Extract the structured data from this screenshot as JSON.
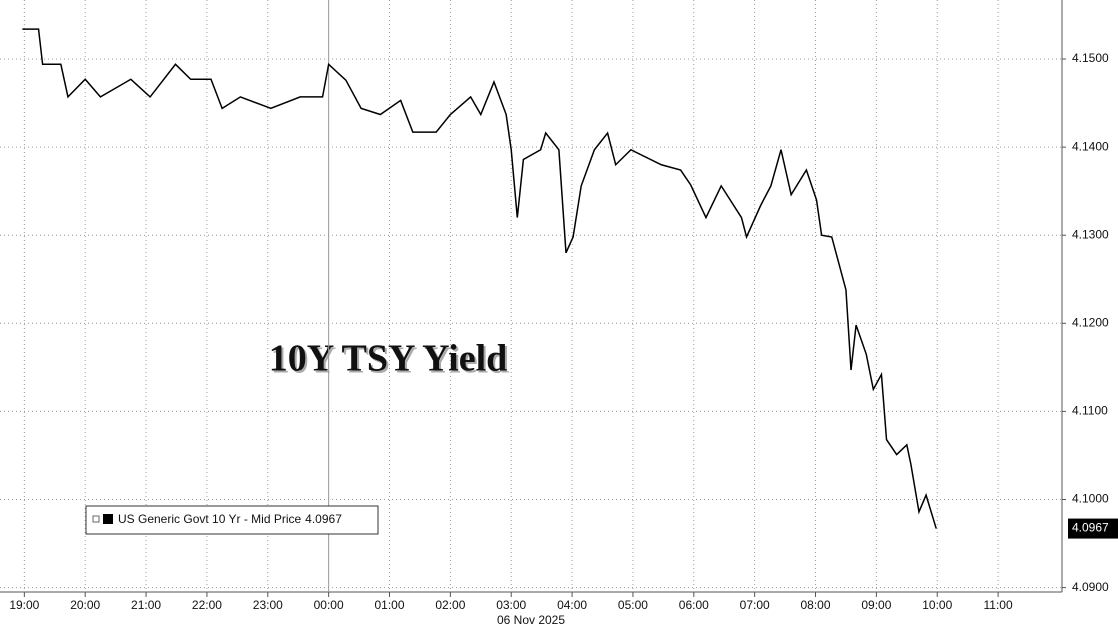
{
  "chart_data": {
    "type": "line",
    "annotation": "10Y TSY Yield",
    "date_label": "06 Nov 2025",
    "x": [
      "18:58",
      "19:14",
      "19:18",
      "19:36",
      "19:43",
      "20:00",
      "20:15",
      "20:45",
      "21:04",
      "21:29",
      "21:44",
      "22:04",
      "22:15",
      "22:33",
      "23:03",
      "23:32",
      "23:54",
      "00:00",
      "00:17",
      "00:32",
      "00:51",
      "01:11",
      "01:23",
      "01:46",
      "02:00",
      "02:20",
      "02:30",
      "02:43",
      "02:55",
      "03:00",
      "03:06",
      "03:12",
      "03:29",
      "03:34",
      "03:47",
      "03:54",
      "04:01",
      "04:09",
      "04:22",
      "04:35",
      "04:43",
      "04:58",
      "05:28",
      "05:47",
      "05:57",
      "06:12",
      "06:27",
      "06:47",
      "06:52",
      "07:06",
      "07:16",
      "07:26",
      "07:36",
      "07:51",
      "08:01",
      "08:06",
      "08:16",
      "08:30",
      "08:35",
      "08:40",
      "08:50",
      "08:57",
      "09:05",
      "09:10",
      "09:20",
      "09:30",
      "09:34",
      "09:42",
      "09:49",
      "09:59"
    ],
    "series": [
      {
        "name": "US Generic Govt 10 Yr - Mid Price",
        "color": "#000000",
        "values": [
          4.1534,
          4.1534,
          4.1494,
          4.1494,
          4.1457,
          4.1477,
          4.1457,
          4.1477,
          4.1457,
          4.1494,
          4.1477,
          4.1477,
          4.1444,
          4.1457,
          4.1444,
          4.1457,
          4.1457,
          4.1494,
          4.1476,
          4.1444,
          4.1437,
          4.1453,
          4.1417,
          4.1417,
          4.1437,
          4.1457,
          4.1437,
          4.1474,
          4.1437,
          4.1397,
          4.132,
          4.1386,
          4.1397,
          4.1416,
          4.1397,
          4.128,
          4.1298,
          4.1356,
          4.1397,
          4.1416,
          4.138,
          4.1397,
          4.138,
          4.1374,
          4.1357,
          4.132,
          4.1356,
          4.132,
          4.1298,
          4.1334,
          4.1356,
          4.1397,
          4.1346,
          4.1374,
          4.134,
          4.13,
          4.1298,
          4.1238,
          4.1147,
          4.1198,
          4.1165,
          4.1125,
          4.1142,
          4.1068,
          4.1051,
          4.1062,
          4.104,
          4.0986,
          4.1005,
          4.0967
        ]
      }
    ],
    "last_value": 4.0967,
    "xlim": [
      "18:36",
      "12:03"
    ],
    "xticks": [
      "19:00",
      "20:00",
      "21:00",
      "22:00",
      "23:00",
      "00:00",
      "01:00",
      "02:00",
      "03:00",
      "04:00",
      "05:00",
      "06:00",
      "07:00",
      "08:00",
      "09:00",
      "10:00",
      "11:00"
    ],
    "ylim": [
      4.0895,
      4.1567
    ],
    "yticks": [
      {
        "value": 4.09,
        "label": "4.0900"
      },
      {
        "value": 4.1,
        "label": "4.1000"
      },
      {
        "value": 4.11,
        "label": "4.1100"
      },
      {
        "value": 4.12,
        "label": "4.1200"
      },
      {
        "value": 4.13,
        "label": "4.1300"
      },
      {
        "value": 4.14,
        "label": "4.1400"
      },
      {
        "value": 4.15,
        "label": "4.1500"
      }
    ],
    "grid": true
  }
}
